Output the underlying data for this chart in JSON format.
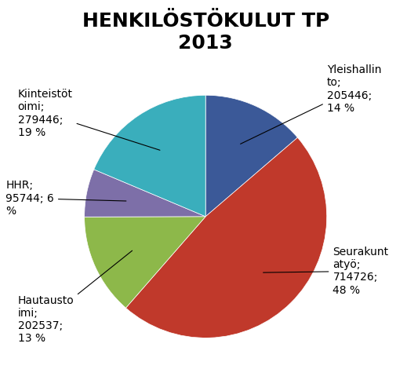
{
  "title": "HENKILÖSTÖKULUT TP\n2013",
  "slices": [
    {
      "label": "Yleishallin\nto;\n205446;\n14 %",
      "value": 205446,
      "color": "#3b5998",
      "pct": 14
    },
    {
      "label": "Seurakunt\natyö;\n714726;\n48 %",
      "value": 714726,
      "color": "#c0392b",
      "pct": 48
    },
    {
      "label": "Hautausto\nimi;\n202537;\n13 %",
      "value": 202537,
      "color": "#8db84a",
      "pct": 13
    },
    {
      "label": "HHR;\n95744; 6\n%",
      "value": 95744,
      "color": "#7d6fa8",
      "pct": 6
    },
    {
      "label": "Kiinteistöt\noimi;\n279446;\n19 %",
      "value": 279446,
      "color": "#3aaebc",
      "pct": 19
    }
  ],
  "title_fontsize": 18,
  "label_fontsize": 10,
  "background_color": "#ffffff"
}
